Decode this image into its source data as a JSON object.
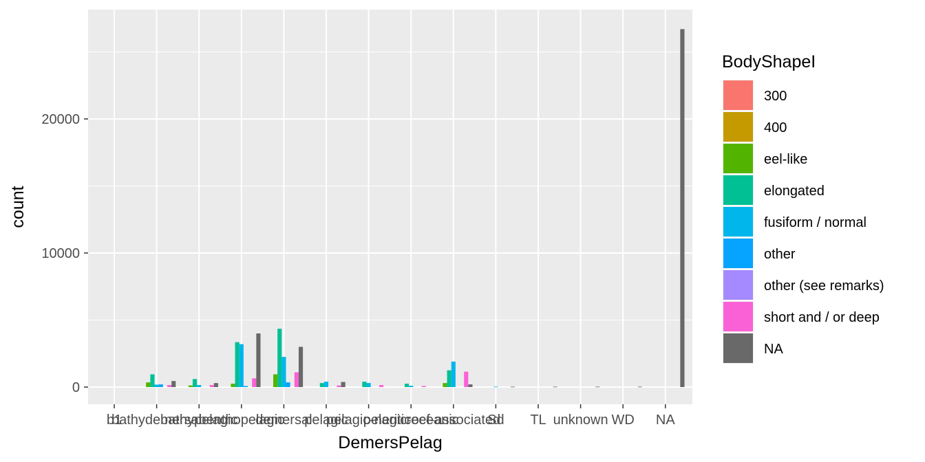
{
  "chart_data": {
    "type": "bar",
    "title": "",
    "xlabel": "DemersPelag",
    "ylabel": "count",
    "ylim": [
      0,
      27500
    ],
    "y_ticks": [
      0,
      10000,
      20000
    ],
    "y_tick_labels": [
      "0",
      "10000",
      "20000"
    ],
    "categories": [
      "b1",
      "bathydemersal",
      "bathypelagic",
      "benthopelagic",
      "demersal",
      "pelagic",
      "pelagic-neritic",
      "pelagic-oceanic",
      "reef-associated",
      "Sd",
      "TL",
      "unknown",
      "WD",
      "NA"
    ],
    "legend_title": "BodyShapeI",
    "legend_position": "right",
    "series": [
      {
        "name": "300",
        "color": "#F8766D",
        "values": [
          0,
          0,
          0,
          0,
          0,
          0,
          0,
          0,
          0,
          0,
          0,
          0,
          0,
          0
        ]
      },
      {
        "name": "400",
        "color": "#C49A00",
        "values": [
          0,
          0,
          0,
          0,
          0,
          0,
          0,
          0,
          0,
          0,
          0,
          0,
          0,
          0
        ]
      },
      {
        "name": "eel-like",
        "color": "#53B400",
        "values": [
          0,
          350,
          120,
          250,
          950,
          0,
          0,
          0,
          300,
          0,
          0,
          0,
          0,
          0
        ]
      },
      {
        "name": "elongated",
        "color": "#00C094",
        "values": [
          0,
          950,
          600,
          3350,
          4350,
          300,
          400,
          250,
          1250,
          0,
          0,
          0,
          0,
          0
        ]
      },
      {
        "name": "fusiform / normal",
        "color": "#00B6EB",
        "values": [
          0,
          180,
          150,
          3200,
          2250,
          400,
          300,
          100,
          1900,
          30,
          0,
          0,
          0,
          0
        ]
      },
      {
        "name": "other",
        "color": "#06A4FF",
        "values": [
          0,
          200,
          0,
          80,
          350,
          0,
          0,
          0,
          0,
          0,
          0,
          0,
          0,
          0
        ]
      },
      {
        "name": "other (see remarks)",
        "color": "#A58AFF",
        "values": [
          0,
          0,
          0,
          0,
          0,
          0,
          0,
          0,
          0,
          0,
          0,
          0,
          0,
          0
        ]
      },
      {
        "name": "short and / or deep",
        "color": "#FB61D7",
        "values": [
          0,
          150,
          150,
          650,
          1100,
          120,
          150,
          80,
          1150,
          0,
          0,
          0,
          0,
          0
        ]
      },
      {
        "name": "NA",
        "color": "#696969",
        "values": [
          0,
          450,
          300,
          4000,
          3000,
          380,
          0,
          0,
          200,
          30,
          30,
          30,
          30,
          26700
        ]
      }
    ],
    "grid": true
  }
}
